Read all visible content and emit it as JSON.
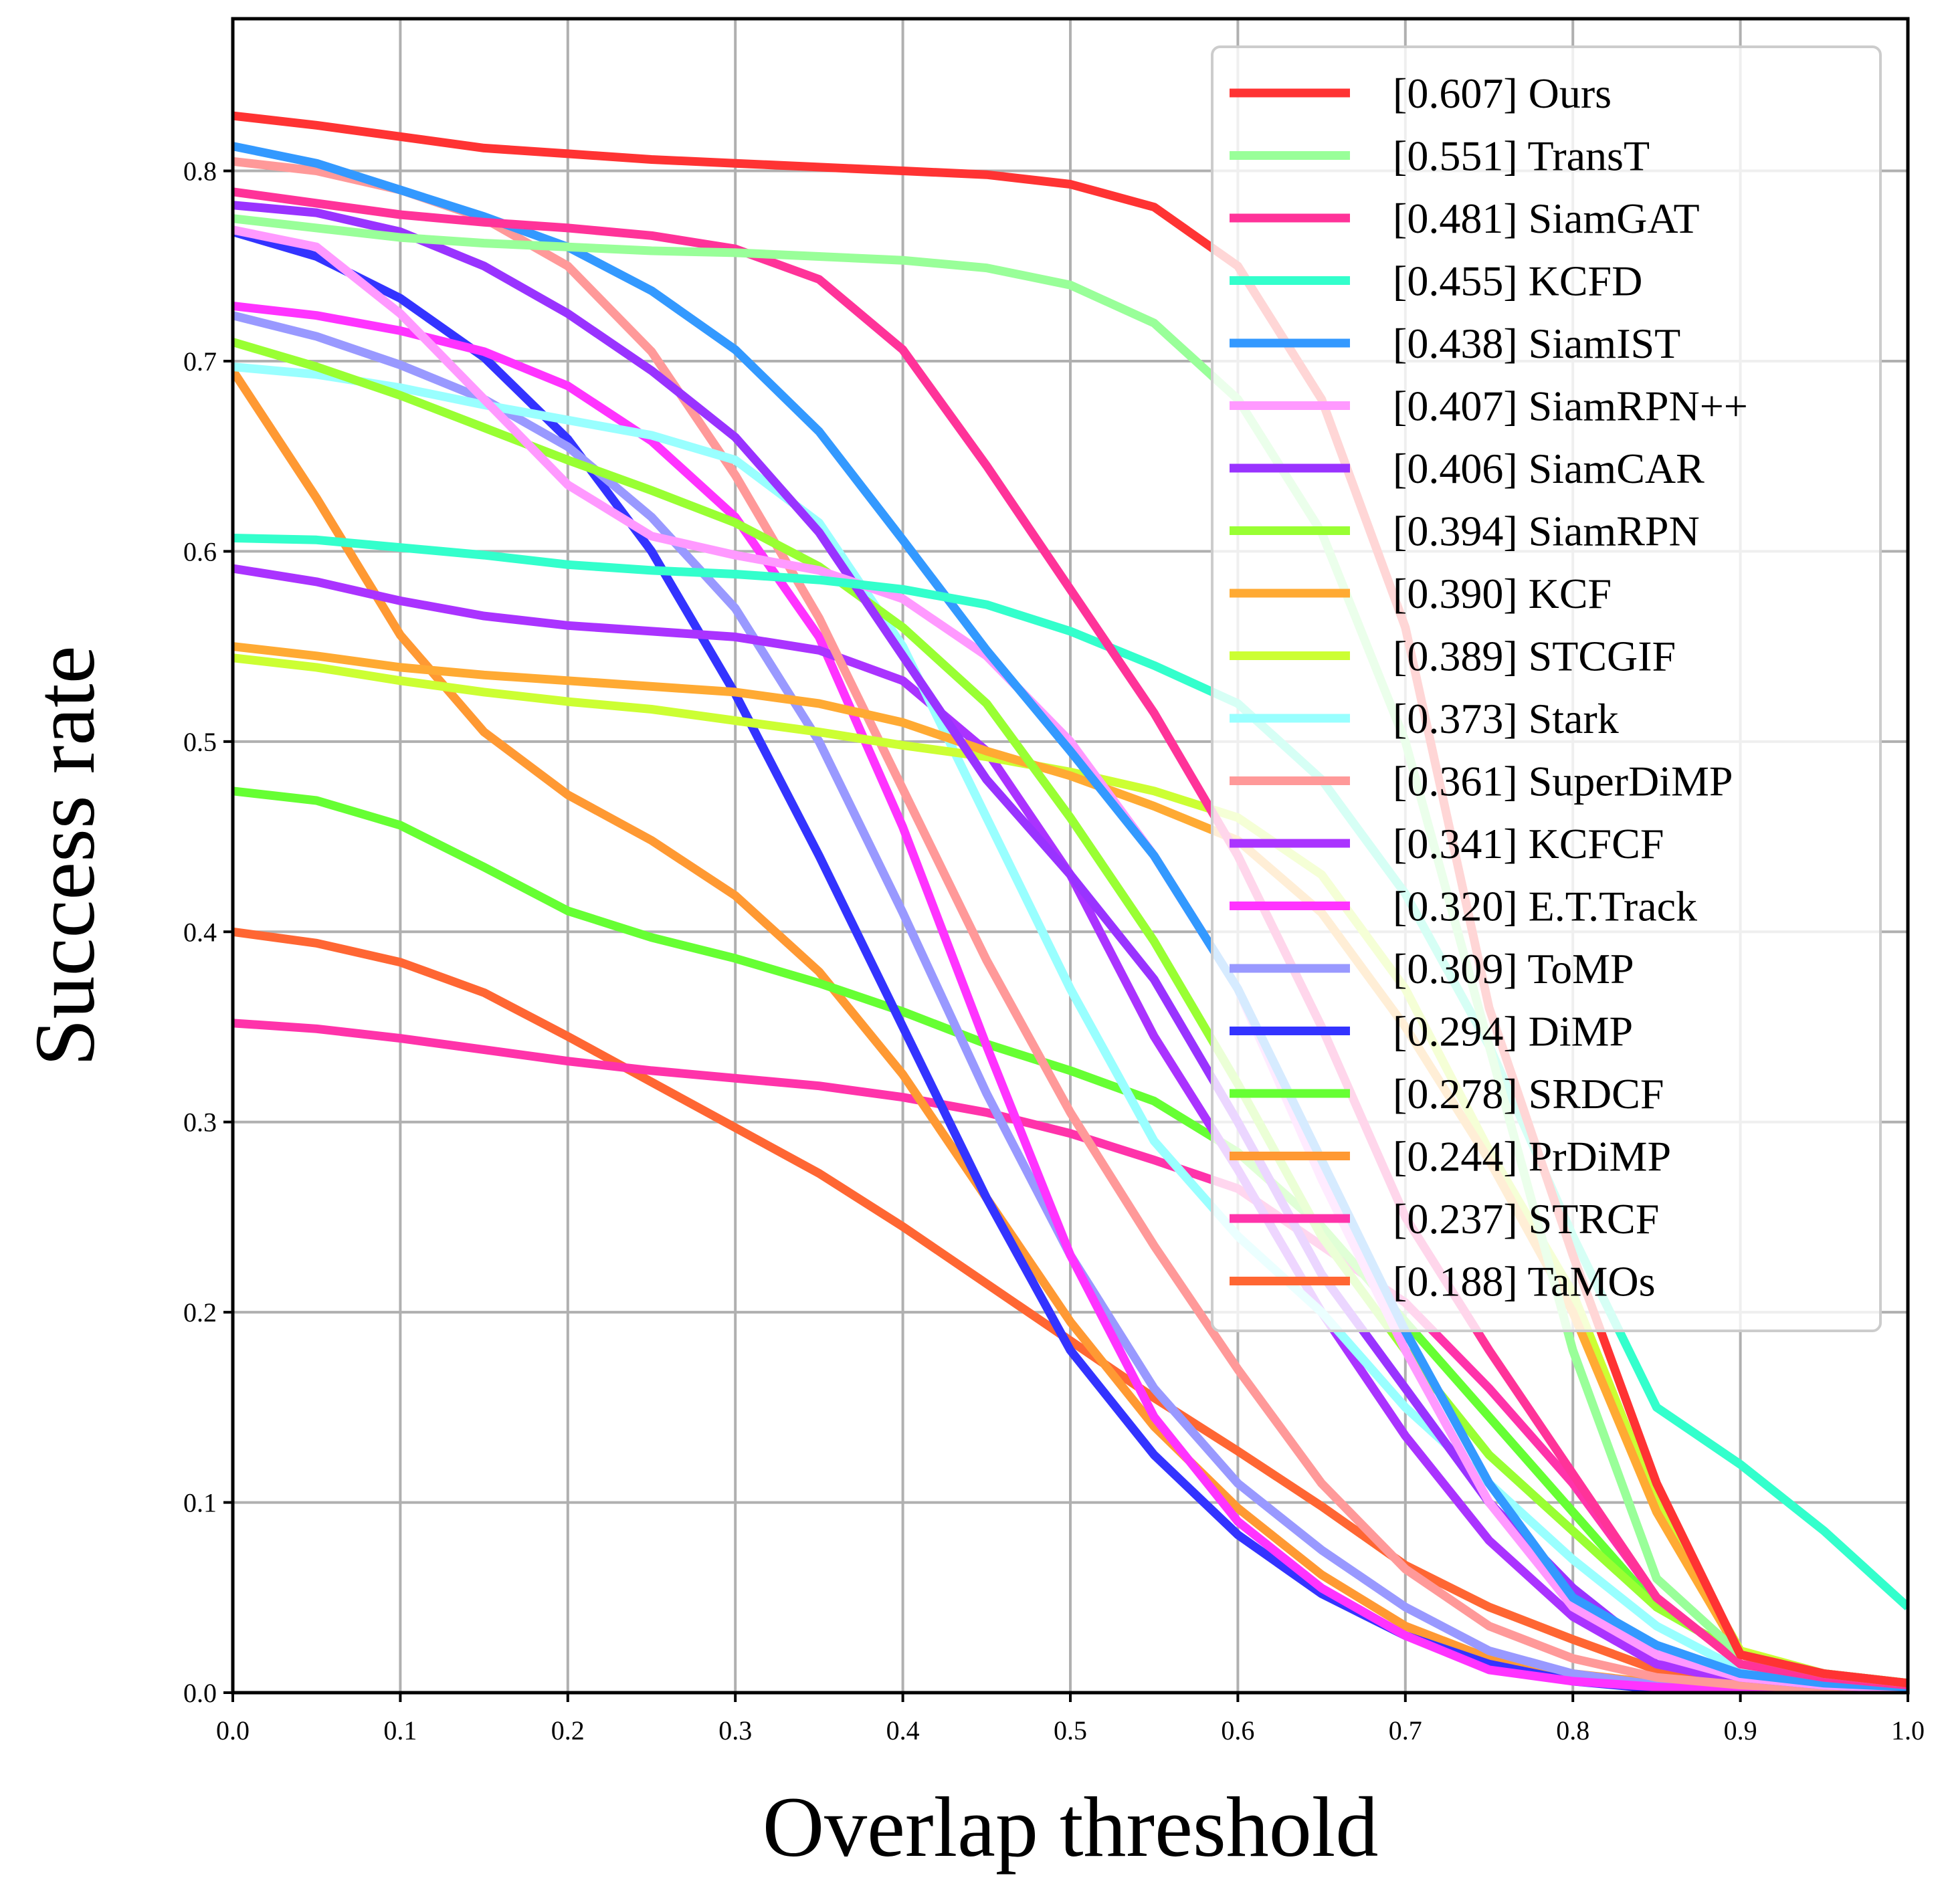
{
  "chart_data": {
    "type": "line",
    "title": "",
    "xlabel": "Overlap threshold",
    "ylabel": "Success rate",
    "xlim": [
      0,
      1
    ],
    "ylim": [
      0,
      0.88
    ],
    "xticks": [
      "0.0",
      "0.1",
      "0.2",
      "0.3",
      "0.4",
      "0.5",
      "0.6",
      "0.7",
      "0.8",
      "0.9",
      "1.0"
    ],
    "yticks": [
      "0.0",
      "0.1",
      "0.2",
      "0.3",
      "0.4",
      "0.5",
      "0.6",
      "0.7",
      "0.8"
    ],
    "grid": true,
    "legend_position": "top-right",
    "x": [
      0,
      0.05,
      0.1,
      0.15,
      0.2,
      0.25,
      0.3,
      0.35,
      0.4,
      0.45,
      0.5,
      0.55,
      0.6,
      0.65,
      0.7,
      0.75,
      0.8,
      0.85,
      0.9,
      0.95,
      1.0
    ],
    "series": [
      {
        "name": "[0.607] Ours",
        "color": "#ff3333",
        "values": [
          0.829,
          0.824,
          0.818,
          0.812,
          0.809,
          0.806,
          0.804,
          0.802,
          0.8,
          0.798,
          0.793,
          0.781,
          0.75,
          0.68,
          0.56,
          0.36,
          0.23,
          0.11,
          0.02,
          0.01,
          0.005
        ]
      },
      {
        "name": "[0.551] TransT",
        "color": "#99ff99",
        "values": [
          0.775,
          0.77,
          0.765,
          0.762,
          0.76,
          0.758,
          0.757,
          0.755,
          0.753,
          0.749,
          0.74,
          0.72,
          0.68,
          0.61,
          0.5,
          0.34,
          0.18,
          0.06,
          0.02,
          0.01,
          0.005
        ]
      },
      {
        "name": "[0.481] SiamGAT",
        "color": "#ff3399",
        "values": [
          0.789,
          0.783,
          0.777,
          0.773,
          0.77,
          0.766,
          0.759,
          0.743,
          0.706,
          0.645,
          0.58,
          0.515,
          0.44,
          0.35,
          0.25,
          0.18,
          0.115,
          0.05,
          0.015,
          0.008,
          0.004
        ]
      },
      {
        "name": "[0.455] KCFD",
        "color": "#33ffcc",
        "values": [
          0.607,
          0.606,
          0.602,
          0.598,
          0.593,
          0.59,
          0.588,
          0.585,
          0.58,
          0.572,
          0.558,
          0.54,
          0.52,
          0.48,
          0.42,
          0.34,
          0.24,
          0.15,
          0.12,
          0.085,
          0.045
        ]
      },
      {
        "name": "[0.438] SiamIST",
        "color": "#3399ff",
        "values": [
          0.813,
          0.804,
          0.79,
          0.776,
          0.76,
          0.737,
          0.706,
          0.663,
          0.606,
          0.548,
          0.495,
          0.44,
          0.37,
          0.28,
          0.19,
          0.11,
          0.05,
          0.025,
          0.01,
          0.005,
          0.003
        ]
      },
      {
        "name": "[0.407] SiamRPN++",
        "color": "#ff99ff",
        "values": [
          0.769,
          0.76,
          0.725,
          0.68,
          0.635,
          0.608,
          0.598,
          0.59,
          0.575,
          0.545,
          0.5,
          0.44,
          0.37,
          0.27,
          0.18,
          0.1,
          0.045,
          0.02,
          0.008,
          0.004,
          0.002
        ]
      },
      {
        "name": "[0.406] SiamCAR",
        "color": "#9933ff",
        "values": [
          0.782,
          0.778,
          0.768,
          0.75,
          0.725,
          0.695,
          0.66,
          0.61,
          0.545,
          0.48,
          0.43,
          0.375,
          0.3,
          0.22,
          0.16,
          0.1,
          0.055,
          0.02,
          0.008,
          0.004,
          0.002
        ]
      },
      {
        "name": "[0.394] SiamRPN",
        "color": "#99ff33",
        "values": [
          0.71,
          0.697,
          0.682,
          0.665,
          0.648,
          0.632,
          0.615,
          0.592,
          0.56,
          0.52,
          0.46,
          0.395,
          0.32,
          0.24,
          0.18,
          0.125,
          0.085,
          0.045,
          0.02,
          0.01,
          0.005
        ]
      },
      {
        "name": "[0.390] KCF",
        "color": "#ffaa33",
        "values": [
          0.55,
          0.545,
          0.539,
          0.535,
          0.532,
          0.529,
          0.526,
          0.52,
          0.51,
          0.495,
          0.482,
          0.466,
          0.448,
          0.41,
          0.35,
          0.28,
          0.2,
          0.095,
          0.02,
          0.01,
          0.005
        ]
      },
      {
        "name": "[0.389] STCGIF",
        "color": "#ccff33",
        "values": [
          0.544,
          0.539,
          0.532,
          0.526,
          0.521,
          0.517,
          0.511,
          0.505,
          0.498,
          0.492,
          0.484,
          0.474,
          0.46,
          0.43,
          0.37,
          0.285,
          0.21,
          0.1,
          0.022,
          0.01,
          0.005
        ]
      },
      {
        "name": "[0.373] Stark",
        "color": "#99ffff",
        "values": [
          0.697,
          0.693,
          0.686,
          0.677,
          0.669,
          0.661,
          0.648,
          0.615,
          0.55,
          0.46,
          0.37,
          0.29,
          0.24,
          0.2,
          0.15,
          0.11,
          0.07,
          0.035,
          0.012,
          0.005,
          0.002
        ]
      },
      {
        "name": "[0.361] SuperDiMP",
        "color": "#ff9999",
        "values": [
          0.805,
          0.8,
          0.79,
          0.775,
          0.75,
          0.705,
          0.64,
          0.565,
          0.475,
          0.385,
          0.305,
          0.235,
          0.17,
          0.11,
          0.065,
          0.035,
          0.018,
          0.008,
          0.004,
          0.002,
          0.001
        ]
      },
      {
        "name": "[0.341] KCFCF",
        "color": "#aa33ff",
        "values": [
          0.591,
          0.584,
          0.574,
          0.566,
          0.561,
          0.558,
          0.555,
          0.548,
          0.532,
          0.495,
          0.43,
          0.345,
          0.275,
          0.2,
          0.135,
          0.08,
          0.04,
          0.015,
          0.006,
          0.003,
          0.001
        ]
      },
      {
        "name": "[0.320] E.T.Track",
        "color": "#ff33ff",
        "values": [
          0.729,
          0.724,
          0.716,
          0.705,
          0.687,
          0.658,
          0.618,
          0.555,
          0.455,
          0.34,
          0.23,
          0.145,
          0.09,
          0.055,
          0.03,
          0.012,
          0.006,
          0.003,
          0.001,
          0.0005,
          0.0
        ]
      },
      {
        "name": "[0.309] ToMP",
        "color": "#9999ff",
        "values": [
          0.724,
          0.713,
          0.698,
          0.68,
          0.655,
          0.618,
          0.57,
          0.5,
          0.41,
          0.315,
          0.23,
          0.16,
          0.11,
          0.075,
          0.045,
          0.022,
          0.01,
          0.004,
          0.002,
          0.001,
          0.0
        ]
      },
      {
        "name": "[0.294] DiMP",
        "color": "#3333ff",
        "values": [
          0.768,
          0.755,
          0.733,
          0.702,
          0.659,
          0.6,
          0.525,
          0.44,
          0.35,
          0.26,
          0.18,
          0.125,
          0.083,
          0.052,
          0.03,
          0.015,
          0.006,
          0.002,
          0.001,
          0.0,
          0.0
        ]
      },
      {
        "name": "[0.278] SRDCF",
        "color": "#66ff33",
        "values": [
          0.474,
          0.469,
          0.456,
          0.434,
          0.411,
          0.397,
          0.386,
          0.373,
          0.358,
          0.341,
          0.327,
          0.311,
          0.284,
          0.245,
          0.195,
          0.145,
          0.095,
          0.045,
          0.02,
          0.01,
          0.005
        ]
      },
      {
        "name": "[0.244] PrDiMP",
        "color": "#ff9933",
        "values": [
          0.695,
          0.628,
          0.556,
          0.505,
          0.472,
          0.448,
          0.419,
          0.379,
          0.325,
          0.26,
          0.195,
          0.14,
          0.097,
          0.062,
          0.035,
          0.018,
          0.01,
          0.005,
          0.002,
          0.001,
          0.0
        ]
      },
      {
        "name": "[0.237] STRCF",
        "color": "#ff33aa",
        "values": [
          0.352,
          0.349,
          0.344,
          0.338,
          0.332,
          0.327,
          0.323,
          0.319,
          0.313,
          0.305,
          0.294,
          0.28,
          0.265,
          0.235,
          0.205,
          0.16,
          0.11,
          0.05,
          0.015,
          0.007,
          0.003
        ]
      },
      {
        "name": "[0.188] TaMOs",
        "color": "#ff6633",
        "values": [
          0.4,
          0.394,
          0.384,
          0.368,
          0.345,
          0.321,
          0.297,
          0.273,
          0.245,
          0.215,
          0.185,
          0.155,
          0.127,
          0.098,
          0.067,
          0.045,
          0.028,
          0.012,
          0.005,
          0.002,
          0.001
        ]
      }
    ]
  }
}
